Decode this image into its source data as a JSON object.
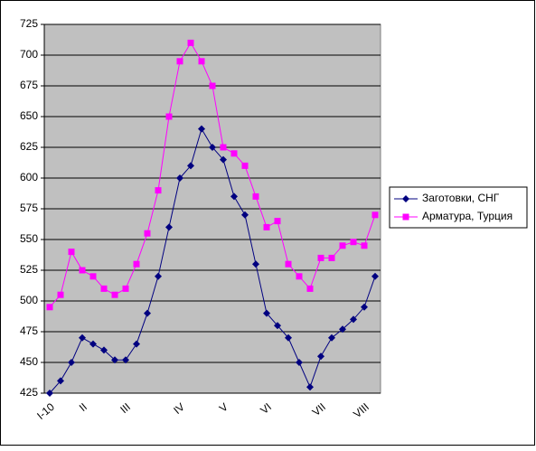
{
  "chart_data": {
    "type": "line",
    "categories": [
      "I-10",
      null,
      null,
      "II",
      null,
      null,
      null,
      "III",
      null,
      null,
      null,
      null,
      "IV",
      null,
      null,
      null,
      "V",
      null,
      null,
      null,
      "VI",
      null,
      null,
      null,
      null,
      "VII",
      null,
      null,
      null,
      "VIII",
      null
    ],
    "series": [
      {
        "name": "Заготовки, СНГ",
        "color": "#000080",
        "marker": "diamond",
        "values": [
          425,
          435,
          450,
          470,
          465,
          460,
          452,
          452,
          465,
          490,
          520,
          560,
          600,
          610,
          640,
          625,
          615,
          585,
          570,
          530,
          490,
          480,
          470,
          450,
          430,
          455,
          470,
          477,
          485,
          495,
          520
        ]
      },
      {
        "name": "Арматура, Турция",
        "color": "#ff00ff",
        "marker": "square",
        "values": [
          495,
          505,
          540,
          525,
          520,
          510,
          505,
          510,
          530,
          555,
          590,
          650,
          695,
          710,
          695,
          675,
          625,
          620,
          610,
          585,
          560,
          565,
          530,
          520,
          510,
          535,
          535,
          545,
          548,
          545,
          570
        ]
      }
    ],
    "ylim": [
      425,
      725
    ],
    "yticks": [
      425,
      450,
      475,
      500,
      525,
      550,
      575,
      600,
      625,
      650,
      675,
      700,
      725
    ],
    "grid": true,
    "legend": "right"
  }
}
